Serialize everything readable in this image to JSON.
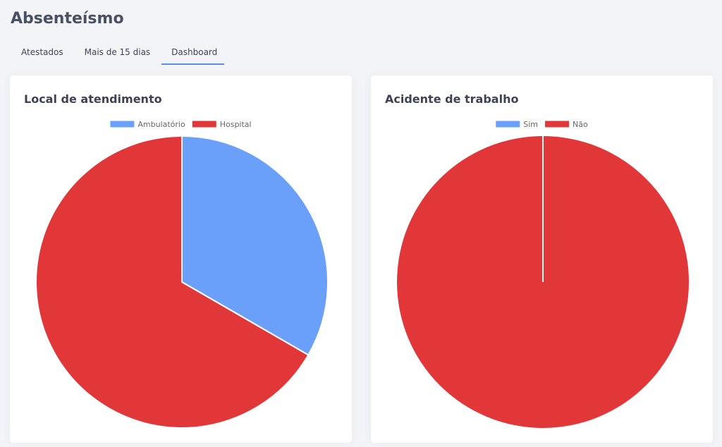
{
  "page": {
    "title": "Absenteísmo"
  },
  "tabs": [
    {
      "label": "Atestados",
      "active": false
    },
    {
      "label": "Mais de 15 dias",
      "active": false
    },
    {
      "label": "Dashboard",
      "active": true
    }
  ],
  "colors": {
    "blue": "#6aa0fa",
    "red": "#e23739",
    "tab_underline": "#5b8def"
  },
  "cards": {
    "local": {
      "title": "Local de atendimento"
    },
    "acidente": {
      "title": "Acidente de trabalho"
    }
  },
  "chart_data": [
    {
      "type": "pie",
      "title": "Local de atendimento",
      "labels": [
        "Ambulatório",
        "Hospital"
      ],
      "values": [
        1,
        2
      ],
      "colors": [
        "#6aa0fa",
        "#e23739"
      ],
      "legend": "top"
    },
    {
      "type": "pie",
      "title": "Acidente de trabalho",
      "labels": [
        "Sim",
        "Não"
      ],
      "values": [
        0,
        1
      ],
      "colors": [
        "#6aa0fa",
        "#e23739"
      ],
      "legend": "top"
    }
  ]
}
